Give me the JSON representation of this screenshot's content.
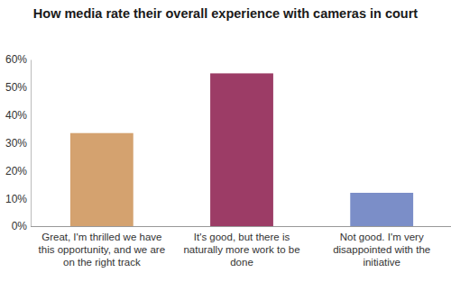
{
  "chart_data": {
    "type": "bar",
    "title": "How media rate their overall experience with cameras in court",
    "categories": [
      "Great, I'm thrilled we have this opportunity, and we are on the right track",
      "It's good, but there is naturally more work to be done",
      "Not good. I'm very disappointed with the initiative"
    ],
    "values": [
      33.5,
      55,
      12
    ],
    "colors": [
      "#d4a26f",
      "#9c3c66",
      "#7b8ec8"
    ],
    "ylim": [
      0,
      60
    ],
    "yticks": [
      {
        "value": 0,
        "label": "0%"
      },
      {
        "value": 10,
        "label": "10%"
      },
      {
        "value": 20,
        "label": "20%"
      },
      {
        "value": 30,
        "label": "30%"
      },
      {
        "value": 40,
        "label": "40%"
      },
      {
        "value": 50,
        "label": "50%"
      },
      {
        "value": 60,
        "label": "60%"
      }
    ],
    "grid": false
  }
}
